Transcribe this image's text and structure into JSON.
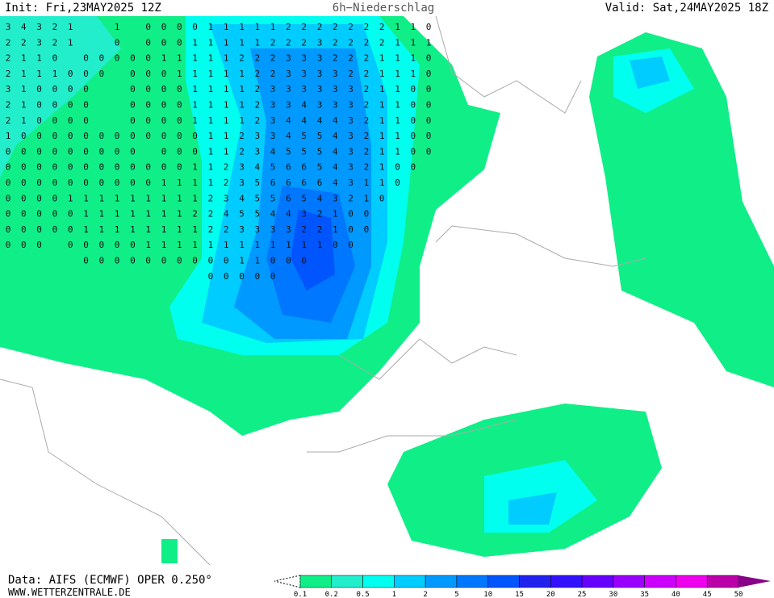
{
  "header": {
    "init": "Init: Fri,23MAY2025 12Z",
    "title": "6h−Niederschlag",
    "valid": "Valid: Sat,24MAY2025 18Z"
  },
  "footer": {
    "data": "Data: AIFS (ECMWF) OPER 0.250°",
    "site": "WWW.WETTERZENTRALE.DE"
  },
  "legend": {
    "levels": [
      0.1,
      0.2,
      0.5,
      1,
      2,
      5,
      10,
      15,
      20,
      25,
      30,
      35,
      40,
      45,
      50
    ],
    "colors": [
      "#10ee88",
      "#22eecc",
      "#00ffee",
      "#00ccff",
      "#0099ff",
      "#0077ff",
      "#0055ff",
      "#2222ee",
      "#3311ff",
      "#6600ff",
      "#9900ff",
      "#cc00ff",
      "#ee00ee",
      "#bb00aa",
      "#880088"
    ]
  },
  "grid_rows": [
    [
      3,
      4,
      3,
      2,
      1,
      null,
      null,
      1,
      null,
      0,
      0,
      0,
      0,
      1,
      1,
      1,
      1,
      1,
      2,
      2,
      2,
      2,
      2,
      2,
      2,
      1,
      1,
      0
    ],
    [
      2,
      2,
      3,
      2,
      1,
      null,
      null,
      0,
      null,
      0,
      0,
      0,
      1,
      1,
      1,
      1,
      1,
      2,
      2,
      2,
      3,
      2,
      2,
      2,
      2,
      1,
      1,
      1
    ],
    [
      2,
      1,
      1,
      0,
      null,
      0,
      0,
      0,
      0,
      0,
      1,
      1,
      1,
      1,
      1,
      2,
      2,
      2,
      3,
      3,
      3,
      2,
      2,
      2,
      1,
      1,
      1,
      0
    ],
    [
      2,
      1,
      1,
      1,
      0,
      0,
      0,
      null,
      0,
      0,
      0,
      1,
      1,
      1,
      1,
      1,
      2,
      2,
      3,
      3,
      3,
      3,
      2,
      2,
      1,
      1,
      1,
      0
    ],
    [
      3,
      1,
      0,
      0,
      0,
      0,
      null,
      null,
      0,
      0,
      0,
      0,
      1,
      1,
      1,
      1,
      2,
      3,
      3,
      3,
      3,
      3,
      3,
      2,
      1,
      1,
      0,
      0
    ],
    [
      2,
      1,
      0,
      0,
      0,
      0,
      null,
      null,
      0,
      0,
      0,
      0,
      1,
      1,
      1,
      1,
      2,
      3,
      3,
      4,
      3,
      3,
      3,
      2,
      1,
      1,
      0,
      0
    ],
    [
      2,
      1,
      0,
      0,
      0,
      0,
      null,
      null,
      0,
      0,
      0,
      0,
      1,
      1,
      1,
      1,
      2,
      3,
      4,
      4,
      4,
      4,
      3,
      2,
      1,
      1,
      0,
      0
    ],
    [
      1,
      0,
      0,
      0,
      0,
      0,
      0,
      0,
      0,
      0,
      0,
      0,
      0,
      1,
      1,
      2,
      3,
      3,
      4,
      5,
      5,
      4,
      3,
      2,
      1,
      1,
      0,
      0
    ],
    [
      0,
      0,
      0,
      0,
      0,
      0,
      0,
      0,
      0,
      null,
      0,
      0,
      0,
      1,
      1,
      2,
      3,
      4,
      5,
      5,
      5,
      4,
      3,
      2,
      1,
      1,
      0,
      0
    ],
    [
      0,
      0,
      0,
      0,
      0,
      0,
      0,
      0,
      0,
      0,
      0,
      0,
      1,
      1,
      2,
      3,
      4,
      5,
      6,
      6,
      5,
      4,
      3,
      2,
      1,
      0,
      0,
      null
    ],
    [
      0,
      0,
      0,
      0,
      0,
      0,
      0,
      0,
      0,
      0,
      1,
      1,
      1,
      1,
      2,
      3,
      5,
      6,
      6,
      6,
      6,
      4,
      3,
      1,
      1,
      0,
      null,
      null
    ],
    [
      0,
      0,
      0,
      0,
      1,
      1,
      1,
      1,
      1,
      1,
      1,
      1,
      1,
      2,
      3,
      4,
      5,
      5,
      6,
      5,
      4,
      3,
      2,
      1,
      0,
      null,
      null,
      null
    ],
    [
      0,
      0,
      0,
      0,
      0,
      1,
      1,
      1,
      1,
      1,
      1,
      1,
      2,
      2,
      4,
      5,
      5,
      4,
      4,
      3,
      2,
      1,
      0,
      0,
      null,
      null,
      null,
      null
    ],
    [
      0,
      0,
      0,
      0,
      0,
      1,
      1,
      1,
      1,
      1,
      1,
      1,
      1,
      2,
      2,
      3,
      3,
      3,
      3,
      2,
      2,
      1,
      0,
      0,
      null,
      null,
      null,
      null
    ],
    [
      0,
      0,
      0,
      null,
      0,
      0,
      0,
      0,
      0,
      1,
      1,
      1,
      1,
      1,
      1,
      1,
      1,
      1,
      1,
      1,
      1,
      0,
      0,
      null,
      null,
      null,
      null,
      null
    ],
    [
      null,
      null,
      null,
      null,
      null,
      0,
      0,
      0,
      0,
      0,
      0,
      0,
      0,
      0,
      0,
      1,
      1,
      0,
      0,
      0,
      null,
      null,
      null,
      null,
      null,
      null,
      null,
      null
    ],
    [
      null,
      null,
      null,
      null,
      null,
      null,
      null,
      null,
      null,
      null,
      null,
      null,
      null,
      0,
      0,
      0,
      0,
      0,
      null,
      null,
      null,
      null,
      null,
      null,
      null,
      null,
      null,
      null
    ]
  ]
}
